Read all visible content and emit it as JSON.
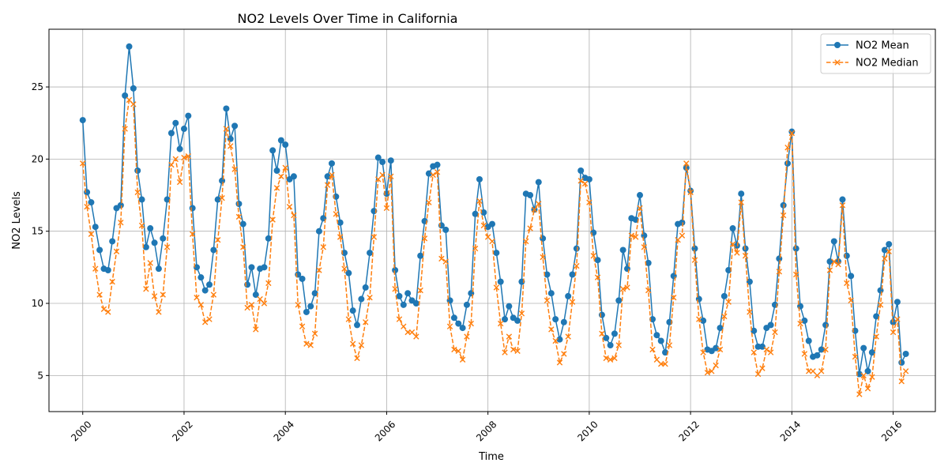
{
  "chart_data": {
    "type": "line",
    "title": "NO2 Levels Over Time in California",
    "xlabel": "Time",
    "ylabel": "NO2 Levels",
    "x_tick_labels": [
      "2000",
      "2002",
      "2004",
      "2006",
      "2008",
      "2010",
      "2012",
      "2014",
      "2016"
    ],
    "y_tick_labels": [
      "5",
      "10",
      "15",
      "20",
      "25"
    ],
    "xlim": [
      "1999-05",
      "2016-11"
    ],
    "ylim": [
      2.5,
      29.0
    ],
    "grid": true,
    "legend_position": "top-right",
    "x": [
      "2000-01",
      "2000-02",
      "2000-03",
      "2000-04",
      "2000-05",
      "2000-06",
      "2000-07",
      "2000-08",
      "2000-09",
      "2000-10",
      "2000-11",
      "2000-12",
      "2001-01",
      "2001-02",
      "2001-03",
      "2001-04",
      "2001-05",
      "2001-06",
      "2001-07",
      "2001-08",
      "2001-09",
      "2001-10",
      "2001-11",
      "2001-12",
      "2002-01",
      "2002-02",
      "2002-03",
      "2002-04",
      "2002-05",
      "2002-06",
      "2002-07",
      "2002-08",
      "2002-09",
      "2002-10",
      "2002-11",
      "2002-12",
      "2003-01",
      "2003-02",
      "2003-03",
      "2003-04",
      "2003-05",
      "2003-06",
      "2003-07",
      "2003-08",
      "2003-09",
      "2003-10",
      "2003-11",
      "2003-12",
      "2004-01",
      "2004-02",
      "2004-03",
      "2004-04",
      "2004-05",
      "2004-06",
      "2004-07",
      "2004-08",
      "2004-09",
      "2004-10",
      "2004-11",
      "2004-12",
      "2005-01",
      "2005-02",
      "2005-03",
      "2005-04",
      "2005-05",
      "2005-06",
      "2005-07",
      "2005-08",
      "2005-09",
      "2005-10",
      "2005-11",
      "2005-12",
      "2006-01",
      "2006-02",
      "2006-03",
      "2006-04",
      "2006-05",
      "2006-06",
      "2006-07",
      "2006-08",
      "2006-09",
      "2006-10",
      "2006-11",
      "2006-12",
      "2007-01",
      "2007-02",
      "2007-03",
      "2007-04",
      "2007-05",
      "2007-06",
      "2007-07",
      "2007-08",
      "2007-09",
      "2007-10",
      "2007-11",
      "2007-12",
      "2008-01",
      "2008-02",
      "2008-03",
      "2008-04",
      "2008-05",
      "2008-06",
      "2008-07",
      "2008-08",
      "2008-09",
      "2008-10",
      "2008-11",
      "2008-12",
      "2009-01",
      "2009-02",
      "2009-03",
      "2009-04",
      "2009-05",
      "2009-06",
      "2009-07",
      "2009-08",
      "2009-09",
      "2009-10",
      "2009-11",
      "2009-12",
      "2010-01",
      "2010-02",
      "2010-03",
      "2010-04",
      "2010-05",
      "2010-06",
      "2010-07",
      "2010-08",
      "2010-09",
      "2010-10",
      "2010-11",
      "2010-12",
      "2011-01",
      "2011-02",
      "2011-03",
      "2011-04",
      "2011-05",
      "2011-06",
      "2011-07",
      "2011-08",
      "2011-09",
      "2011-10",
      "2011-11",
      "2011-12",
      "2012-01",
      "2012-02",
      "2012-03",
      "2012-04",
      "2012-05",
      "2012-06",
      "2012-07",
      "2012-08",
      "2012-09",
      "2012-10",
      "2012-11",
      "2012-12",
      "2013-01",
      "2013-02",
      "2013-03",
      "2013-04",
      "2013-05",
      "2013-06",
      "2013-07",
      "2013-08",
      "2013-09",
      "2013-10",
      "2013-11",
      "2013-12",
      "2014-01",
      "2014-02",
      "2014-03",
      "2014-04",
      "2014-05",
      "2014-06",
      "2014-07",
      "2014-08",
      "2014-09",
      "2014-10",
      "2014-11",
      "2014-12",
      "2015-01",
      "2015-02",
      "2015-03",
      "2015-04",
      "2015-05",
      "2015-06",
      "2015-07",
      "2015-08",
      "2015-09",
      "2015-10",
      "2015-11",
      "2015-12",
      "2016-01",
      "2016-02",
      "2016-03",
      "2016-04"
    ],
    "series": [
      {
        "name": "NO2 Mean",
        "color": "#1f77b4",
        "marker": "circle",
        "line_style": "solid",
        "values": [
          22.7,
          17.7,
          17.0,
          15.3,
          13.7,
          12.4,
          12.3,
          14.3,
          16.6,
          16.8,
          24.4,
          27.8,
          24.9,
          19.2,
          17.2,
          13.9,
          15.2,
          14.2,
          12.4,
          14.5,
          17.2,
          21.8,
          22.5,
          20.7,
          22.1,
          23.0,
          16.6,
          12.5,
          11.8,
          10.9,
          11.3,
          13.7,
          17.2,
          18.5,
          23.5,
          21.4,
          22.3,
          16.9,
          15.5,
          11.3,
          12.5,
          10.6,
          12.4,
          12.5,
          14.5,
          20.6,
          19.2,
          21.3,
          21.0,
          18.6,
          18.8,
          12.0,
          11.7,
          9.4,
          9.8,
          10.7,
          15.0,
          15.9,
          18.8,
          19.7,
          17.4,
          15.6,
          13.5,
          12.1,
          9.5,
          8.5,
          10.3,
          11.1,
          13.5,
          16.4,
          20.1,
          19.8,
          17.6,
          19.9,
          12.3,
          10.5,
          9.9,
          10.7,
          10.2,
          10.0,
          13.3,
          15.7,
          19.0,
          19.5,
          19.6,
          15.4,
          15.1,
          10.2,
          9.0,
          8.6,
          8.3,
          9.9,
          10.7,
          16.2,
          18.6,
          16.3,
          15.3,
          15.5,
          13.5,
          11.5,
          8.9,
          9.8,
          9.0,
          8.8,
          11.5,
          17.6,
          17.5,
          16.5,
          18.4,
          14.5,
          12.0,
          10.7,
          8.9,
          7.5,
          8.7,
          10.5,
          12.0,
          13.8,
          19.2,
          18.7,
          18.6,
          14.9,
          13.0,
          9.2,
          7.6,
          7.1,
          7.9,
          10.2,
          13.7,
          12.4,
          15.9,
          15.8,
          17.5,
          14.7,
          12.8,
          8.9,
          7.8,
          7.4,
          6.6,
          8.7,
          11.9,
          15.5,
          15.6,
          19.4,
          17.8,
          13.8,
          10.3,
          8.8,
          6.8,
          6.7,
          6.9,
          8.3,
          10.5,
          12.3,
          15.2,
          14.0,
          17.6,
          13.8,
          11.5,
          8.1,
          7.0,
          7.0,
          8.3,
          8.5,
          9.9,
          13.1,
          16.8,
          19.7,
          21.9,
          13.8,
          9.8,
          8.8,
          7.4,
          6.3,
          6.4,
          6.8,
          8.5,
          12.9,
          14.3,
          12.9,
          17.2,
          13.3,
          11.9,
          8.1,
          5.1,
          6.9,
          5.3,
          6.6,
          9.1,
          10.9,
          13.7,
          14.1,
          8.7,
          10.1,
          5.9,
          6.5
        ]
      },
      {
        "name": "NO2 Median",
        "color": "#ff7f0e",
        "marker": "x",
        "line_style": "dashed",
        "values": [
          19.7,
          16.7,
          14.8,
          12.4,
          10.6,
          9.6,
          9.4,
          11.5,
          13.6,
          15.6,
          22.1,
          24.1,
          23.8,
          17.7,
          15.4,
          11.0,
          12.8,
          10.5,
          9.4,
          10.6,
          13.9,
          19.6,
          20.0,
          18.4,
          20.1,
          20.2,
          14.8,
          10.4,
          9.9,
          8.7,
          8.9,
          10.6,
          14.4,
          17.3,
          22.1,
          20.9,
          19.3,
          16.0,
          13.9,
          9.7,
          9.9,
          8.2,
          10.3,
          10.0,
          11.4,
          15.8,
          18.0,
          18.8,
          19.4,
          16.7,
          16.1,
          9.9,
          8.4,
          7.2,
          7.1,
          7.9,
          12.3,
          13.9,
          18.2,
          18.9,
          16.2,
          14.6,
          12.4,
          8.9,
          7.2,
          6.2,
          7.1,
          8.7,
          10.4,
          14.6,
          18.6,
          18.9,
          16.6,
          18.8,
          11.0,
          8.9,
          8.4,
          8.0,
          8.0,
          7.7,
          10.9,
          14.5,
          17.0,
          18.9,
          19.1,
          13.1,
          12.9,
          8.4,
          6.8,
          6.7,
          6.1,
          7.7,
          8.6,
          13.8,
          17.1,
          15.4,
          14.6,
          14.3,
          11.1,
          8.6,
          6.6,
          7.7,
          6.8,
          6.7,
          9.3,
          14.3,
          15.2,
          16.5,
          16.9,
          13.2,
          10.2,
          8.2,
          7.4,
          5.9,
          6.5,
          7.7,
          10.1,
          12.6,
          18.5,
          18.3,
          17.0,
          13.3,
          11.8,
          7.9,
          6.2,
          6.1,
          6.2,
          7.1,
          11.0,
          11.1,
          14.7,
          14.6,
          16.6,
          13.9,
          10.9,
          6.8,
          6.1,
          5.8,
          5.8,
          7.1,
          10.4,
          14.4,
          14.7,
          19.7,
          17.7,
          13.0,
          8.9,
          6.6,
          5.2,
          5.3,
          5.7,
          6.8,
          9.1,
          10.1,
          14.1,
          13.5,
          17.0,
          13.3,
          9.4,
          6.6,
          5.1,
          5.5,
          6.8,
          6.6,
          8.0,
          12.2,
          16.1,
          20.8,
          21.8,
          12.0,
          8.6,
          6.5,
          5.3,
          5.3,
          5.0,
          5.3,
          6.8,
          12.3,
          12.9,
          12.7,
          16.8,
          11.4,
          10.2,
          6.3,
          3.7,
          5.0,
          4.1,
          4.9,
          7.7,
          9.9,
          13.1,
          13.6,
          8.0,
          8.9,
          4.6,
          5.3
        ]
      }
    ]
  }
}
